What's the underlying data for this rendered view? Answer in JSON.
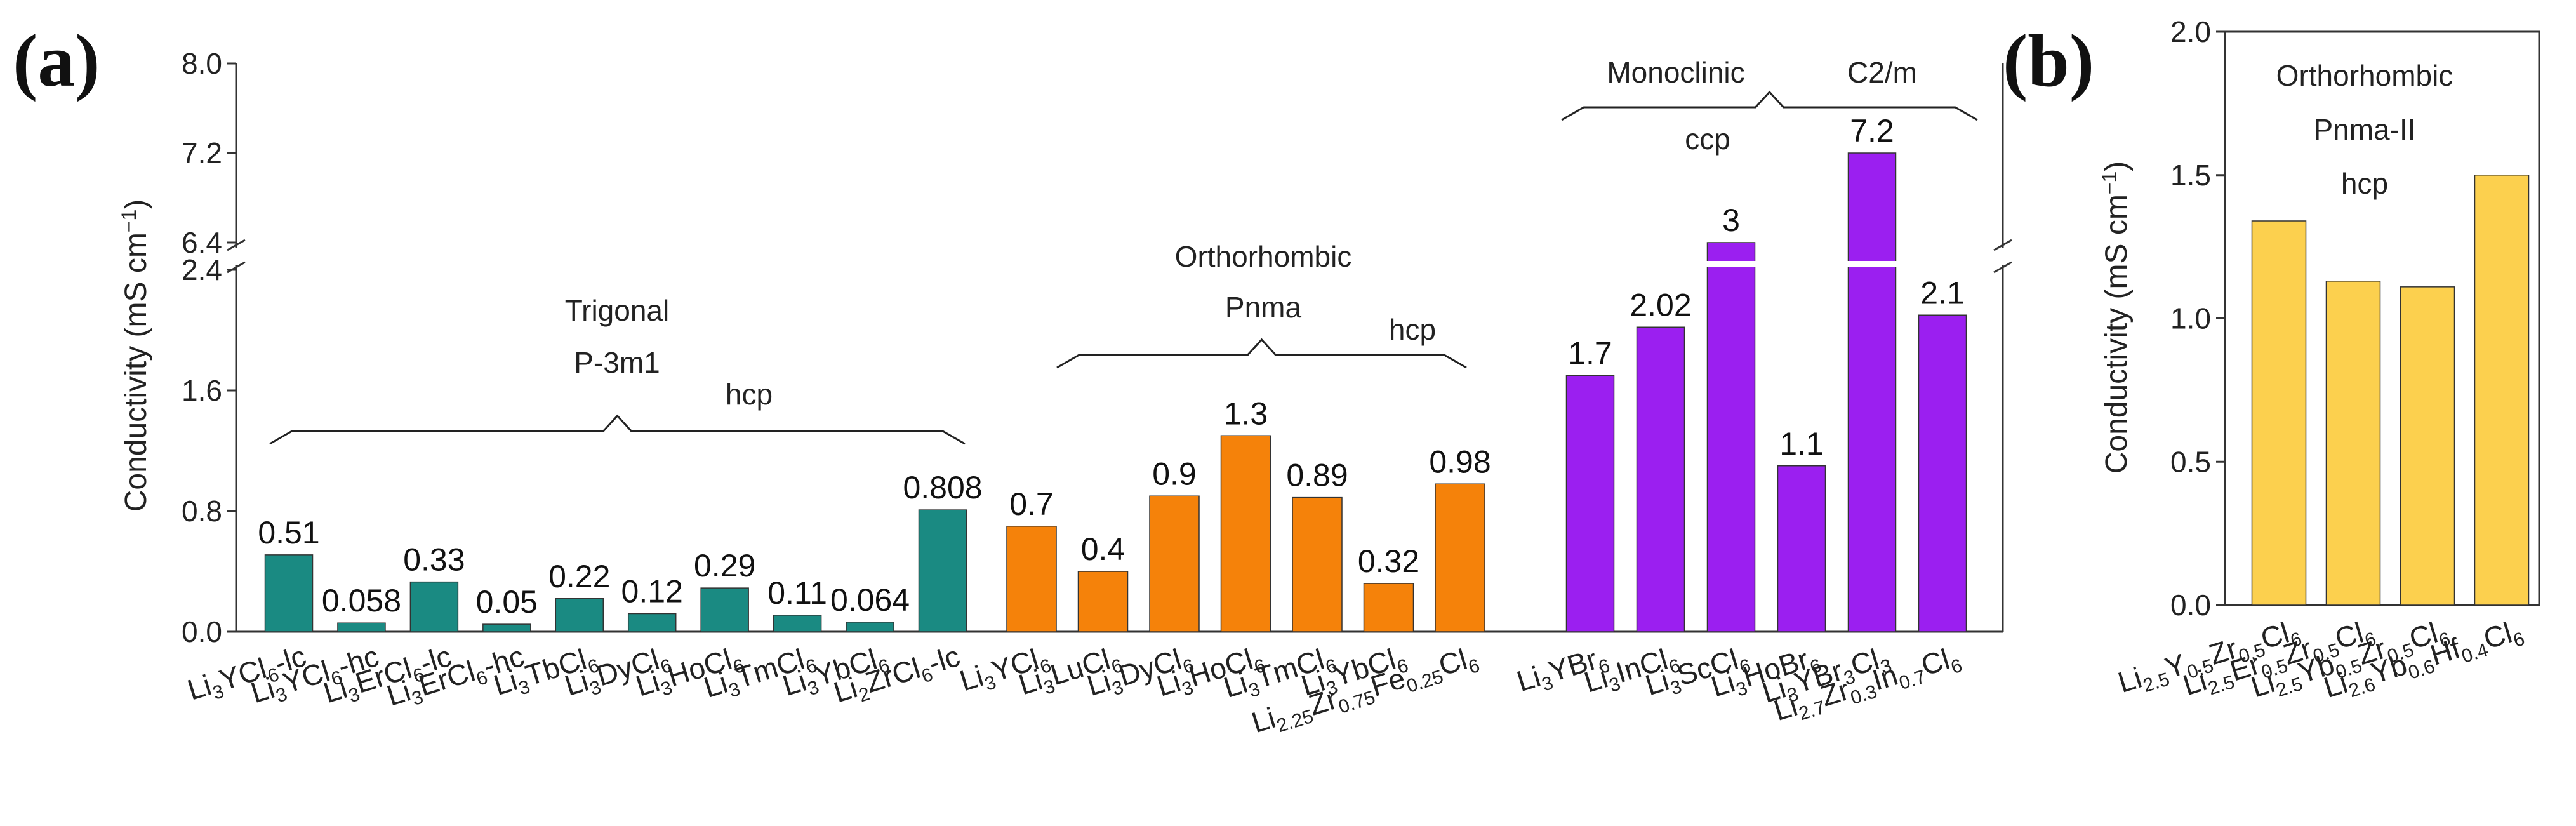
{
  "panels": {
    "a": "(a)",
    "b": "(b)"
  },
  "chart_data": [
    {
      "type": "bar",
      "panel": "(a)",
      "ylabel": "Conductivity (mS cm$^{-1}$)",
      "ylabel_text": "Conductivity (mS cm",
      "ylabel_sup": "−1",
      "ylabel_close": ")",
      "ylim_lower": [
        0,
        2.4
      ],
      "ylim_upper": [
        6.4,
        8.0
      ],
      "yticks_lower": [
        "0.0",
        "0.8",
        "1.6",
        "2.4"
      ],
      "yticks_upper": [
        "6.4",
        "7.2",
        "8.0"
      ],
      "groups": [
        {
          "name": "Trigonal",
          "space_group": "P-3m1",
          "packing": "hcp",
          "color": "#1a8a82",
          "categories": [
            {
              "base": "Li3YCl6-lc",
              "parts": [
                [
                  "Li",
                  "n"
                ],
                [
                  "3",
                  "s"
                ],
                [
                  "YCl",
                  "n"
                ],
                [
                  "6",
                  "s"
                ],
                [
                  "-lc",
                  "n"
                ]
              ]
            },
            {
              "base": "Li3YCl6-hc",
              "parts": [
                [
                  "Li",
                  "n"
                ],
                [
                  "3",
                  "s"
                ],
                [
                  "YCl",
                  "n"
                ],
                [
                  "6",
                  "s"
                ],
                [
                  "-hc",
                  "n"
                ]
              ]
            },
            {
              "base": "Li3ErCl6-lc",
              "parts": [
                [
                  "Li",
                  "n"
                ],
                [
                  "3",
                  "s"
                ],
                [
                  "ErCl",
                  "n"
                ],
                [
                  "6",
                  "s"
                ],
                [
                  "-lc",
                  "n"
                ]
              ]
            },
            {
              "base": "Li3ErCl6-hc",
              "parts": [
                [
                  "Li",
                  "n"
                ],
                [
                  "3",
                  "s"
                ],
                [
                  "ErCl",
                  "n"
                ],
                [
                  "6",
                  "s"
                ],
                [
                  "-hc",
                  "n"
                ]
              ]
            },
            {
              "base": "Li3TbCl6",
              "parts": [
                [
                  "Li",
                  "n"
                ],
                [
                  "3",
                  "s"
                ],
                [
                  "TbCl",
                  "n"
                ],
                [
                  "6",
                  "s"
                ]
              ]
            },
            {
              "base": "Li3DyCl6",
              "parts": [
                [
                  "Li",
                  "n"
                ],
                [
                  "3",
                  "s"
                ],
                [
                  "DyCl",
                  "n"
                ],
                [
                  "6",
                  "s"
                ]
              ]
            },
            {
              "base": "Li3HoCl6",
              "parts": [
                [
                  "Li",
                  "n"
                ],
                [
                  "3",
                  "s"
                ],
                [
                  "HoCl",
                  "n"
                ],
                [
                  "6",
                  "s"
                ]
              ]
            },
            {
              "base": "Li3TmCl6",
              "parts": [
                [
                  "Li",
                  "n"
                ],
                [
                  "3",
                  "s"
                ],
                [
                  "TmCl",
                  "n"
                ],
                [
                  "6",
                  "s"
                ]
              ]
            },
            {
              "base": "Li3YbCl6",
              "parts": [
                [
                  "Li",
                  "n"
                ],
                [
                  "3",
                  "s"
                ],
                [
                  "YbCl",
                  "n"
                ],
                [
                  "6",
                  "s"
                ]
              ]
            },
            {
              "base": "Li2ZrCl6-lc",
              "parts": [
                [
                  "Li",
                  "n"
                ],
                [
                  "2",
                  "s"
                ],
                [
                  "ZrCl",
                  "n"
                ],
                [
                  "6",
                  "s"
                ],
                [
                  "-lc",
                  "n"
                ]
              ]
            }
          ],
          "values": [
            0.51,
            0.058,
            0.33,
            0.05,
            0.22,
            0.12,
            0.29,
            0.11,
            0.064,
            0.808
          ],
          "value_labels": [
            "0.51",
            "0.058",
            "0.33",
            "0.05",
            "0.22",
            "0.12",
            "0.29",
            "0.11",
            "0.064",
            "0.808"
          ]
        },
        {
          "name": "Orthorhombic",
          "space_group": "Pnma",
          "packing": "hcp",
          "color": "#f5820a",
          "categories": [
            {
              "base": "Li3YCl6",
              "parts": [
                [
                  "Li",
                  "n"
                ],
                [
                  "3",
                  "s"
                ],
                [
                  "YCl",
                  "n"
                ],
                [
                  "6",
                  "s"
                ]
              ]
            },
            {
              "base": "Li3LuCl6",
              "parts": [
                [
                  "Li",
                  "n"
                ],
                [
                  "3",
                  "s"
                ],
                [
                  "LuCl",
                  "n"
                ],
                [
                  "6",
                  "s"
                ]
              ]
            },
            {
              "base": "Li3DyCl6",
              "parts": [
                [
                  "Li",
                  "n"
                ],
                [
                  "3",
                  "s"
                ],
                [
                  "DyCl",
                  "n"
                ],
                [
                  "6",
                  "s"
                ]
              ]
            },
            {
              "base": "Li3HoCl6",
              "parts": [
                [
                  "Li",
                  "n"
                ],
                [
                  "3",
                  "s"
                ],
                [
                  "HoCl",
                  "n"
                ],
                [
                  "6",
                  "s"
                ]
              ]
            },
            {
              "base": "Li3TmCl6",
              "parts": [
                [
                  "Li",
                  "n"
                ],
                [
                  "3",
                  "s"
                ],
                [
                  "TmCl",
                  "n"
                ],
                [
                  "6",
                  "s"
                ]
              ]
            },
            {
              "base": "Li3YbCl6",
              "parts": [
                [
                  "Li",
                  "n"
                ],
                [
                  "3",
                  "s"
                ],
                [
                  "YbCl",
                  "n"
                ],
                [
                  "6",
                  "s"
                ]
              ]
            },
            {
              "base": "Li2.25Zr0.75Fe0.25Cl6",
              "parts": [
                [
                  "Li",
                  "n"
                ],
                [
                  "2.25",
                  "s"
                ],
                [
                  "Zr",
                  "n"
                ],
                [
                  "0.75",
                  "s"
                ],
                [
                  "Fe",
                  "n"
                ],
                [
                  "0.25",
                  "s"
                ],
                [
                  "Cl",
                  "n"
                ],
                [
                  "6",
                  "s"
                ]
              ]
            }
          ],
          "values": [
            0.7,
            0.4,
            0.9,
            1.3,
            0.89,
            0.32,
            0.98
          ],
          "value_labels": [
            "0.7",
            "0.4",
            "0.9",
            "1.3",
            "0.89",
            "0.32",
            "0.98"
          ]
        },
        {
          "name": "Monoclinic",
          "space_group": "C2/m",
          "packing": "ccp",
          "color": "#9b1ff0",
          "categories": [
            {
              "base": "Li3YBr6",
              "parts": [
                [
                  "Li",
                  "n"
                ],
                [
                  "3",
                  "s"
                ],
                [
                  "YBr",
                  "n"
                ],
                [
                  "6",
                  "s"
                ]
              ]
            },
            {
              "base": "Li3InCl6",
              "parts": [
                [
                  "Li",
                  "n"
                ],
                [
                  "3",
                  "s"
                ],
                [
                  "InCl",
                  "n"
                ],
                [
                  "6",
                  "s"
                ]
              ]
            },
            {
              "base": "Li3ScCl6",
              "parts": [
                [
                  "Li",
                  "n"
                ],
                [
                  "3",
                  "s"
                ],
                [
                  "ScCl",
                  "n"
                ],
                [
                  "6",
                  "s"
                ]
              ]
            },
            {
              "base": "Li3HoBr6",
              "parts": [
                [
                  "Li",
                  "n"
                ],
                [
                  "3",
                  "s"
                ],
                [
                  "HoBr",
                  "n"
                ],
                [
                  "6",
                  "s"
                ]
              ]
            },
            {
              "base": "Li3YBr3Cl3",
              "parts": [
                [
                  "Li",
                  "n"
                ],
                [
                  "3",
                  "s"
                ],
                [
                  "YBr",
                  "n"
                ],
                [
                  "3",
                  "s"
                ],
                [
                  "Cl",
                  "n"
                ],
                [
                  "3",
                  "s"
                ]
              ]
            },
            {
              "base": "Li2.7Zr0.3In0.7Cl6",
              "parts": [
                [
                  "Li",
                  "n"
                ],
                [
                  "2.7",
                  "s"
                ],
                [
                  "Zr",
                  "n"
                ],
                [
                  "0.3",
                  "s"
                ],
                [
                  "In",
                  "n"
                ],
                [
                  "0.7",
                  "s"
                ],
                [
                  "Cl",
                  "n"
                ],
                [
                  "6",
                  "s"
                ]
              ]
            }
          ],
          "values": [
            1.7,
            2.02,
            3,
            1.1,
            7.2,
            2.1
          ],
          "value_labels": [
            "1.7",
            "2.02",
            "3",
            "1.1",
            "7.2",
            "2.1"
          ]
        }
      ]
    },
    {
      "type": "bar",
      "panel": "(b)",
      "ylabel": "Conductivity (mS cm$^{-1}$)",
      "ylabel_text": "Conductivity (mS cm",
      "ylabel_sup": "−1",
      "ylabel_close": ")",
      "ylim": [
        0,
        2.0
      ],
      "yticks": [
        "0.0",
        "0.5",
        "1.0",
        "1.5",
        "2.0"
      ],
      "annotation": {
        "structure": "Orthorhombic",
        "space_group": "Pnma-II",
        "packing": "hcp"
      },
      "color": "#fcd04e",
      "categories": [
        {
          "base": "Li2.5Y0.5Zr0.5Cl6",
          "parts": [
            [
              "Li",
              "n"
            ],
            [
              "2.5",
              "s"
            ],
            [
              "Y",
              "n"
            ],
            [
              "0.5",
              "s"
            ],
            [
              "Zr",
              "n"
            ],
            [
              "0.5",
              "s"
            ],
            [
              "Cl",
              "n"
            ],
            [
              "6",
              "s"
            ]
          ]
        },
        {
          "base": "Li2.5Er0.5Zr0.5Cl6",
          "parts": [
            [
              "Li",
              "n"
            ],
            [
              "2.5",
              "s"
            ],
            [
              "Er",
              "n"
            ],
            [
              "0.5",
              "s"
            ],
            [
              "Zr",
              "n"
            ],
            [
              "0.5",
              "s"
            ],
            [
              "Cl",
              "n"
            ],
            [
              "6",
              "s"
            ]
          ]
        },
        {
          "base": "Li2.5Yb0.5Zr0.5Cl6",
          "parts": [
            [
              "Li",
              "n"
            ],
            [
              "2.5",
              "s"
            ],
            [
              "Yb",
              "n"
            ],
            [
              "0.5",
              "s"
            ],
            [
              "Zr",
              "n"
            ],
            [
              "0.5",
              "s"
            ],
            [
              "Cl",
              "n"
            ],
            [
              "6",
              "s"
            ]
          ]
        },
        {
          "base": "Li2.6Yb0.6Hf0.4Cl6",
          "parts": [
            [
              "Li",
              "n"
            ],
            [
              "2.6",
              "s"
            ],
            [
              "Yb",
              "n"
            ],
            [
              "0.6",
              "s"
            ],
            [
              "Hf",
              "n"
            ],
            [
              "0.4",
              "s"
            ],
            [
              "Cl",
              "n"
            ],
            [
              "6",
              "s"
            ]
          ]
        }
      ],
      "values": [
        1.34,
        1.13,
        1.11,
        1.5
      ]
    }
  ]
}
